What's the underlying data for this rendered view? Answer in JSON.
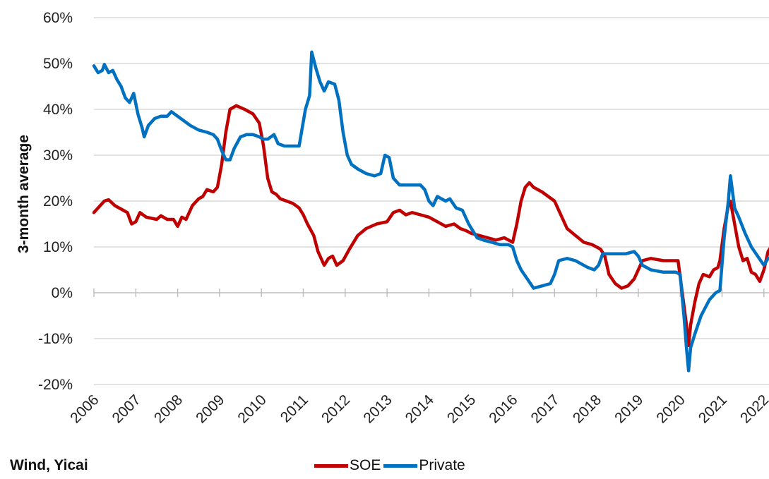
{
  "source": "Wind, Yicai",
  "chart_data": {
    "type": "line",
    "title": "",
    "ylabel": "3-month average",
    "xlabel": "",
    "ylim": [
      -20,
      60
    ],
    "xlim": [
      2006,
      2022
    ],
    "y_ticks": [
      "60%",
      "50%",
      "40%",
      "30%",
      "20%",
      "10%",
      "0%",
      "-10%",
      "-20%"
    ],
    "x_ticks": [
      "2006",
      "2007",
      "2008",
      "2009",
      "2010",
      "2011",
      "2012",
      "2013",
      "2014",
      "2015",
      "2016",
      "2017",
      "2018",
      "2019",
      "2020",
      "2021",
      "2022"
    ],
    "grid": true,
    "legend_position": "bottom",
    "legend": [
      "SOE",
      "Private"
    ],
    "series": [
      {
        "name": "SOE",
        "color": "#c00000",
        "points": [
          [
            2006,
            17.5
          ],
          [
            2006.1,
            18.5
          ],
          [
            2006.25,
            20
          ],
          [
            2006.35,
            20.3
          ],
          [
            2006.5,
            19
          ],
          [
            2006.7,
            18
          ],
          [
            2006.8,
            17.5
          ],
          [
            2006.9,
            15
          ],
          [
            2007.0,
            15.5
          ],
          [
            2007.1,
            17.5
          ],
          [
            2007.25,
            16.5
          ],
          [
            2007.5,
            16
          ],
          [
            2007.6,
            16.8
          ],
          [
            2007.75,
            16
          ],
          [
            2007.9,
            16
          ],
          [
            2008.0,
            14.5
          ],
          [
            2008.1,
            16.5
          ],
          [
            2008.2,
            16
          ],
          [
            2008.35,
            19
          ],
          [
            2008.5,
            20.5
          ],
          [
            2008.6,
            21
          ],
          [
            2008.7,
            22.5
          ],
          [
            2008.85,
            22
          ],
          [
            2008.95,
            23
          ],
          [
            2009.05,
            28
          ],
          [
            2009.15,
            35
          ],
          [
            2009.25,
            40
          ],
          [
            2009.4,
            40.8
          ],
          [
            2009.6,
            40
          ],
          [
            2009.8,
            39
          ],
          [
            2009.95,
            37
          ],
          [
            2010.05,
            32
          ],
          [
            2010.15,
            25
          ],
          [
            2010.25,
            22
          ],
          [
            2010.35,
            21.5
          ],
          [
            2010.45,
            20.5
          ],
          [
            2010.6,
            20
          ],
          [
            2010.75,
            19.5
          ],
          [
            2010.9,
            18.5
          ],
          [
            2011.0,
            17
          ],
          [
            2011.1,
            15
          ],
          [
            2011.25,
            12.5
          ],
          [
            2011.35,
            9
          ],
          [
            2011.5,
            6
          ],
          [
            2011.6,
            7.5
          ],
          [
            2011.7,
            8
          ],
          [
            2011.8,
            6
          ],
          [
            2011.95,
            7
          ],
          [
            2012.1,
            9.5
          ],
          [
            2012.3,
            12.5
          ],
          [
            2012.5,
            14
          ],
          [
            2012.75,
            15
          ],
          [
            2013.0,
            15.5
          ],
          [
            2013.15,
            17.5
          ],
          [
            2013.3,
            18
          ],
          [
            2013.45,
            17
          ],
          [
            2013.6,
            17.5
          ],
          [
            2013.8,
            17
          ],
          [
            2014.0,
            16.5
          ],
          [
            2014.2,
            15.5
          ],
          [
            2014.4,
            14.5
          ],
          [
            2014.6,
            15
          ],
          [
            2014.75,
            14
          ],
          [
            2014.9,
            13.5
          ],
          [
            2015.0,
            13
          ],
          [
            2015.2,
            12.5
          ],
          [
            2015.4,
            12
          ],
          [
            2015.6,
            11.5
          ],
          [
            2015.8,
            12
          ],
          [
            2016.0,
            11
          ],
          [
            2016.1,
            15
          ],
          [
            2016.2,
            20
          ],
          [
            2016.3,
            23
          ],
          [
            2016.4,
            24
          ],
          [
            2016.5,
            23
          ],
          [
            2016.7,
            22
          ],
          [
            2016.85,
            21
          ],
          [
            2017.0,
            20
          ],
          [
            2017.15,
            17
          ],
          [
            2017.3,
            14
          ],
          [
            2017.5,
            12.5
          ],
          [
            2017.7,
            11
          ],
          [
            2017.9,
            10.5
          ],
          [
            2018.0,
            10
          ],
          [
            2018.1,
            9.5
          ],
          [
            2018.2,
            8
          ],
          [
            2018.3,
            4
          ],
          [
            2018.45,
            2
          ],
          [
            2018.6,
            1
          ],
          [
            2018.75,
            1.5
          ],
          [
            2018.9,
            3
          ],
          [
            2019.0,
            5
          ],
          [
            2019.1,
            7
          ],
          [
            2019.3,
            7.5
          ],
          [
            2019.6,
            7
          ],
          [
            2019.8,
            7
          ],
          [
            2019.95,
            7
          ],
          [
            2020.05,
            0
          ],
          [
            2020.15,
            -7
          ],
          [
            2020.2,
            -11.5
          ],
          [
            2020.25,
            -7
          ],
          [
            2020.35,
            -2
          ],
          [
            2020.45,
            2
          ],
          [
            2020.55,
            4
          ],
          [
            2020.7,
            3.5
          ],
          [
            2020.8,
            5
          ],
          [
            2020.9,
            5.5
          ],
          [
            2020.95,
            7
          ],
          [
            2021.05,
            14
          ],
          [
            2021.15,
            19
          ],
          [
            2021.2,
            20
          ],
          [
            2021.3,
            15
          ],
          [
            2021.4,
            10
          ],
          [
            2021.5,
            7
          ],
          [
            2021.6,
            7.5
          ],
          [
            2021.7,
            4.5
          ],
          [
            2021.8,
            4
          ],
          [
            2021.9,
            2.5
          ],
          [
            2022.0,
            5
          ],
          [
            2022.1,
            9
          ],
          [
            2022.2,
            10.5
          ]
        ]
      },
      {
        "name": "Private",
        "color": "#0070c0",
        "points": [
          [
            2006,
            49.5
          ],
          [
            2006.1,
            48
          ],
          [
            2006.2,
            48.5
          ],
          [
            2006.25,
            49.8
          ],
          [
            2006.35,
            48
          ],
          [
            2006.45,
            48.5
          ],
          [
            2006.55,
            46.5
          ],
          [
            2006.65,
            45
          ],
          [
            2006.75,
            42.5
          ],
          [
            2006.85,
            41.5
          ],
          [
            2006.95,
            43.5
          ],
          [
            2007.05,
            39
          ],
          [
            2007.15,
            36
          ],
          [
            2007.2,
            34
          ],
          [
            2007.3,
            36.5
          ],
          [
            2007.45,
            38
          ],
          [
            2007.6,
            38.5
          ],
          [
            2007.75,
            38.5
          ],
          [
            2007.85,
            39.5
          ],
          [
            2008.0,
            38.5
          ],
          [
            2008.15,
            37.5
          ],
          [
            2008.3,
            36.5
          ],
          [
            2008.5,
            35.5
          ],
          [
            2008.7,
            35
          ],
          [
            2008.85,
            34.5
          ],
          [
            2008.95,
            33.5
          ],
          [
            2009.05,
            31
          ],
          [
            2009.15,
            29
          ],
          [
            2009.25,
            29
          ],
          [
            2009.35,
            31.5
          ],
          [
            2009.5,
            34
          ],
          [
            2009.65,
            34.5
          ],
          [
            2009.8,
            34.5
          ],
          [
            2009.95,
            34
          ],
          [
            2010.05,
            33.5
          ],
          [
            2010.15,
            33.5
          ],
          [
            2010.3,
            34.5
          ],
          [
            2010.4,
            32.5
          ],
          [
            2010.55,
            32
          ],
          [
            2010.7,
            32
          ],
          [
            2010.9,
            32
          ],
          [
            2011.05,
            40
          ],
          [
            2011.15,
            43
          ],
          [
            2011.2,
            52.5
          ],
          [
            2011.3,
            49
          ],
          [
            2011.4,
            46
          ],
          [
            2011.5,
            44
          ],
          [
            2011.6,
            46
          ],
          [
            2011.75,
            45.5
          ],
          [
            2011.85,
            42
          ],
          [
            2011.95,
            35
          ],
          [
            2012.05,
            30
          ],
          [
            2012.15,
            28
          ],
          [
            2012.3,
            27
          ],
          [
            2012.5,
            26
          ],
          [
            2012.7,
            25.5
          ],
          [
            2012.85,
            26
          ],
          [
            2012.95,
            30
          ],
          [
            2013.05,
            29.5
          ],
          [
            2013.15,
            25
          ],
          [
            2013.3,
            23.5
          ],
          [
            2013.5,
            23.5
          ],
          [
            2013.7,
            23.5
          ],
          [
            2013.8,
            23.5
          ],
          [
            2013.9,
            22.5
          ],
          [
            2014.0,
            20
          ],
          [
            2014.1,
            19
          ],
          [
            2014.2,
            21
          ],
          [
            2014.3,
            20.5
          ],
          [
            2014.4,
            20
          ],
          [
            2014.5,
            20.5
          ],
          [
            2014.65,
            18.5
          ],
          [
            2014.8,
            18
          ],
          [
            2014.95,
            15
          ],
          [
            2015.05,
            13.5
          ],
          [
            2015.15,
            12
          ],
          [
            2015.3,
            11.5
          ],
          [
            2015.5,
            11
          ],
          [
            2015.7,
            10.5
          ],
          [
            2015.9,
            10.5
          ],
          [
            2016.0,
            10
          ],
          [
            2016.1,
            7
          ],
          [
            2016.2,
            5
          ],
          [
            2016.35,
            3
          ],
          [
            2016.5,
            1
          ],
          [
            2016.7,
            1.5
          ],
          [
            2016.9,
            2
          ],
          [
            2017.0,
            4
          ],
          [
            2017.1,
            7
          ],
          [
            2017.3,
            7.5
          ],
          [
            2017.5,
            7
          ],
          [
            2017.6,
            6.5
          ],
          [
            2017.8,
            5.5
          ],
          [
            2017.95,
            5
          ],
          [
            2018.05,
            6
          ],
          [
            2018.15,
            8.5
          ],
          [
            2018.3,
            8.5
          ],
          [
            2018.5,
            8.5
          ],
          [
            2018.7,
            8.5
          ],
          [
            2018.9,
            9
          ],
          [
            2019.0,
            8
          ],
          [
            2019.1,
            6
          ],
          [
            2019.3,
            5
          ],
          [
            2019.6,
            4.5
          ],
          [
            2019.9,
            4.5
          ],
          [
            2020.0,
            4
          ],
          [
            2020.1,
            -6
          ],
          [
            2020.15,
            -12
          ],
          [
            2020.2,
            -17
          ],
          [
            2020.25,
            -12
          ],
          [
            2020.35,
            -9
          ],
          [
            2020.5,
            -5
          ],
          [
            2020.7,
            -1.5
          ],
          [
            2020.85,
            0
          ],
          [
            2020.95,
            0.5
          ],
          [
            2021.05,
            12
          ],
          [
            2021.15,
            20
          ],
          [
            2021.2,
            25.5
          ],
          [
            2021.3,
            18.5
          ],
          [
            2021.4,
            16.5
          ],
          [
            2021.55,
            13
          ],
          [
            2021.7,
            10
          ],
          [
            2021.85,
            8
          ],
          [
            2022.0,
            6
          ],
          [
            2022.1,
            7.5
          ],
          [
            2022.2,
            7.5
          ]
        ]
      }
    ]
  }
}
